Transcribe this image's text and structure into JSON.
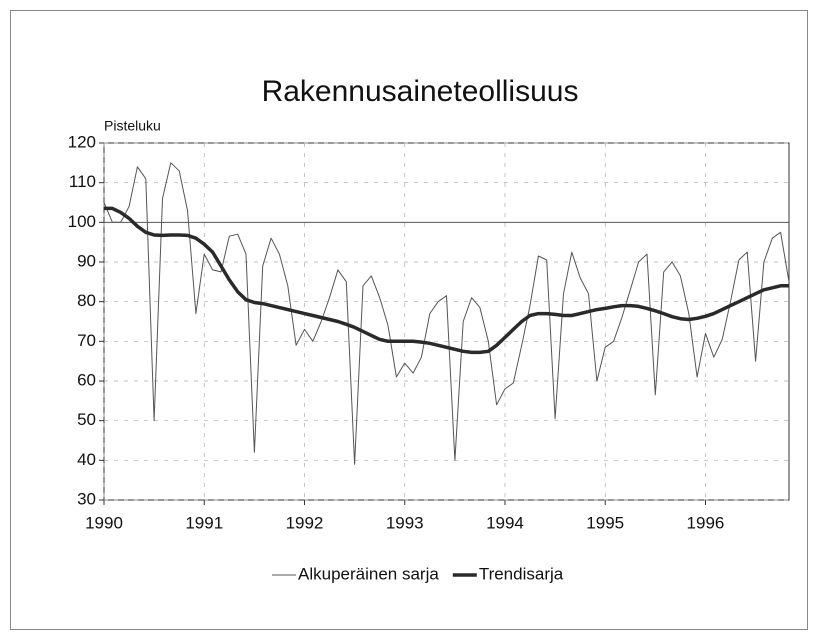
{
  "chart_data": {
    "type": "line",
    "title": "Rakennusaineteollisuus",
    "y_label": "Pisteluku",
    "x": [
      1990,
      1990.0833,
      1990.1667,
      1990.25,
      1990.3333,
      1990.4167,
      1990.5,
      1990.5833,
      1990.6667,
      1990.75,
      1990.8333,
      1990.9167,
      1991,
      1991.0833,
      1991.1667,
      1991.25,
      1991.3333,
      1991.4167,
      1991.5,
      1991.5833,
      1991.6667,
      1991.75,
      1991.8333,
      1991.9167,
      1992,
      1992.0833,
      1992.1667,
      1992.25,
      1992.3333,
      1992.4167,
      1992.5,
      1992.5833,
      1992.6667,
      1992.75,
      1992.8333,
      1992.9167,
      1993,
      1993.0833,
      1993.1667,
      1993.25,
      1993.3333,
      1993.4167,
      1993.5,
      1993.5833,
      1993.6667,
      1993.75,
      1993.8333,
      1993.9167,
      1994,
      1994.0833,
      1994.1667,
      1994.25,
      1994.3333,
      1994.4167,
      1994.5,
      1994.5833,
      1994.6667,
      1994.75,
      1994.8333,
      1994.9167,
      1995,
      1995.0833,
      1995.1667,
      1995.25,
      1995.3333,
      1995.4167,
      1995.5,
      1995.5833,
      1995.6667,
      1995.75,
      1995.8333,
      1995.9167,
      1996,
      1996.0833,
      1996.1667,
      1996.25,
      1996.3333,
      1996.4167,
      1996.5,
      1996.5833,
      1996.6667,
      1996.75,
      1996.8333
    ],
    "series": [
      {
        "name": "Alkuperäinen sarja",
        "color": "#555555",
        "width": 1,
        "values": [
          105,
          100,
          100,
          104,
          114,
          111,
          50,
          106,
          115,
          113,
          103,
          77,
          92,
          88,
          87.5,
          96.5,
          97,
          92,
          42,
          89,
          96,
          92,
          84,
          69,
          73,
          70,
          75,
          81,
          88,
          85,
          39,
          84,
          86.5,
          81,
          74,
          61,
          64.5,
          62,
          66,
          77,
          80,
          81.5,
          40,
          75,
          81,
          78.5,
          70,
          54,
          58,
          59.5,
          69,
          79,
          91.5,
          90.5,
          50.5,
          82,
          92.5,
          86,
          82,
          60,
          68.5,
          70,
          76,
          83,
          90,
          92,
          56.5,
          87.5,
          90,
          86.5,
          77,
          61,
          72,
          66,
          70.5,
          80,
          90.5,
          92.5,
          65,
          90,
          96,
          97.5,
          85
        ]
      },
      {
        "name": "Trendisarja",
        "color": "#2a2a2a",
        "width": 3.5,
        "values": [
          103.5,
          103.5,
          102.5,
          101,
          99,
          97.5,
          96.8,
          96.7,
          96.8,
          96.8,
          96.7,
          96,
          94.5,
          92.5,
          89,
          85.5,
          82.5,
          80.5,
          79.8,
          79.5,
          79,
          78.5,
          78,
          77.5,
          77,
          76.5,
          76,
          75.5,
          75,
          74.3,
          73.5,
          72.5,
          71.5,
          70.5,
          70,
          70,
          70,
          70,
          69.8,
          69.5,
          69,
          68.5,
          68,
          67.5,
          67.2,
          67.2,
          67.5,
          69,
          71,
          73,
          75,
          76.5,
          77,
          77,
          76.8,
          76.5,
          76.5,
          77,
          77.5,
          78,
          78.3,
          78.7,
          79,
          79,
          78.8,
          78.3,
          77.7,
          77,
          76.2,
          75.7,
          75.5,
          75.8,
          76.3,
          77,
          78,
          79,
          80,
          81,
          82,
          83,
          83.5,
          84,
          84
        ]
      }
    ],
    "xlim": [
      1990,
      1996.8333
    ],
    "xticks": [
      1990,
      1991,
      1992,
      1993,
      1994,
      1995,
      1996
    ],
    "ylim": [
      30,
      120
    ],
    "yticks": [
      30,
      40,
      50,
      60,
      70,
      80,
      90,
      100,
      110,
      120
    ],
    "grid": true,
    "reference_line": 100,
    "legend": "bottom"
  }
}
